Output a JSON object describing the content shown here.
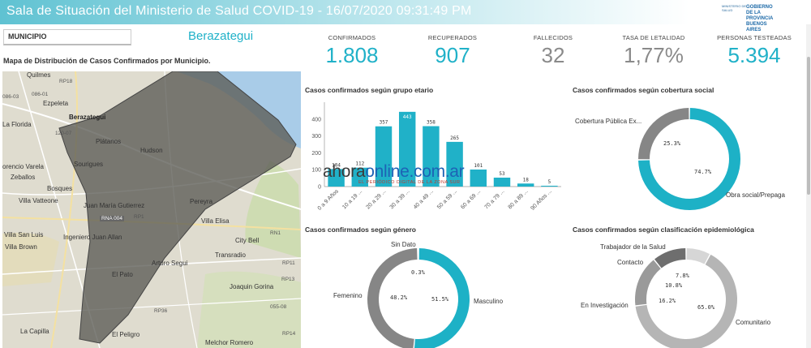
{
  "header": {
    "title": "Sala de Situación del Ministerio de Salud COVID-19 - 16/07/2020 09:31:49 PM",
    "logo_top": "MINISTERIO DE SALUD",
    "logo_main": "GOBIERNO DE LA PROVINCIA BUENOS AIRES"
  },
  "filter": {
    "label": "MUNICIPIO",
    "selected": "Berazategui"
  },
  "map": {
    "title": "Mapa de Distribución de Casos Confirmados por Municipio.",
    "places": [
      "Quilmes",
      "RP18",
      "086-03",
      "086-01",
      "Ezpeleta",
      "Berazategui",
      "La Florida",
      "120-07",
      "Plátanos",
      "Hudson",
      "orencio Varela",
      "Sourigues",
      "Zeballos",
      "Bosques",
      "Villa Vatteone",
      "Juan María Gutierrez",
      "Pereyra",
      "RNA 004",
      "RP1",
      "Villa Elisa",
      "Villa San Luis",
      "Ingeniero Juan Allan",
      "RN1",
      "City Bell",
      "Villa Brown",
      "Transradio",
      "Arturo Segui",
      "RP11",
      "El Pato",
      "RP13",
      "Joaquin Gorina",
      "RP36",
      "055-08",
      "La Capilla",
      "El Peligro",
      "Melchor Romero",
      "RP14"
    ]
  },
  "kpis": [
    {
      "label": "CONFIRMADOS",
      "value": "1.808",
      "color": "#20b1c8"
    },
    {
      "label": "RECUPERADOS",
      "value": "907",
      "color": "#20b1c8"
    },
    {
      "label": "FALLECIDOS",
      "value": "32",
      "color": "#8a8a8a"
    },
    {
      "label": "TASA DE LETALIDAD",
      "value": "1,77%",
      "color": "#8a8a8a"
    },
    {
      "label": "PERSONAS TESTEADAS",
      "value": "5.394",
      "color": "#20b1c8"
    }
  ],
  "chart_data": [
    {
      "type": "bar",
      "title": "Casos confirmados según grupo etario",
      "categories": [
        "0 a 9 Años",
        "10 a 19 ...",
        "20 a 29 ...",
        "30 a 39 ...",
        "40 a 49 ...",
        "50 a 59 ...",
        "60 a 69 ...",
        "70 a 79 ...",
        "80 a 89 ...",
        "90 Años ..."
      ],
      "values": [
        104,
        112,
        357,
        443,
        358,
        265,
        101,
        53,
        18,
        5
      ],
      "ylim": [
        0,
        500
      ],
      "yticks": [
        0,
        100,
        200,
        300,
        400
      ],
      "highlight_index": 3,
      "color": "#20b1c8"
    },
    {
      "type": "pie",
      "title": "Casos confirmados según cobertura social",
      "labels": [
        "Cobertura Pública Ex...",
        "Obra social/Prepaga"
      ],
      "values": [
        25.3,
        74.7
      ],
      "value_labels": [
        "25.3%",
        "74.7%"
      ],
      "colors": [
        "#868686",
        "#1db1c6"
      ]
    },
    {
      "type": "pie",
      "title": "Casos confirmados según género",
      "labels": [
        "Sin Dato",
        "Masculino",
        "Femenino"
      ],
      "values": [
        0.3,
        51.5,
        48.2
      ],
      "value_labels": [
        "0.3%",
        "51.5%",
        "48.2%"
      ],
      "colors": [
        "#555555",
        "#1db1c6",
        "#868686"
      ]
    },
    {
      "type": "pie",
      "title": "Casos confirmados según clasificación epidemiológica",
      "labels": [
        "Trabajador de la Salud",
        "Comunitario",
        "En Investigación",
        "Contacto"
      ],
      "values": [
        7.8,
        65.0,
        16.2,
        10.8
      ],
      "value_labels": [
        "7.8%",
        "65.0%",
        "16.2%",
        "10.8%"
      ],
      "colors": [
        "#d6d6d6",
        "#b5b5b5",
        "#9a9a9a",
        "#6e6e6e"
      ]
    }
  ],
  "watermark": {
    "main_a": "ahora",
    "main_b": "online.com.ar",
    "sub": "EL PERIÓDICO DIGITAL DE LA ZONA SUR"
  }
}
